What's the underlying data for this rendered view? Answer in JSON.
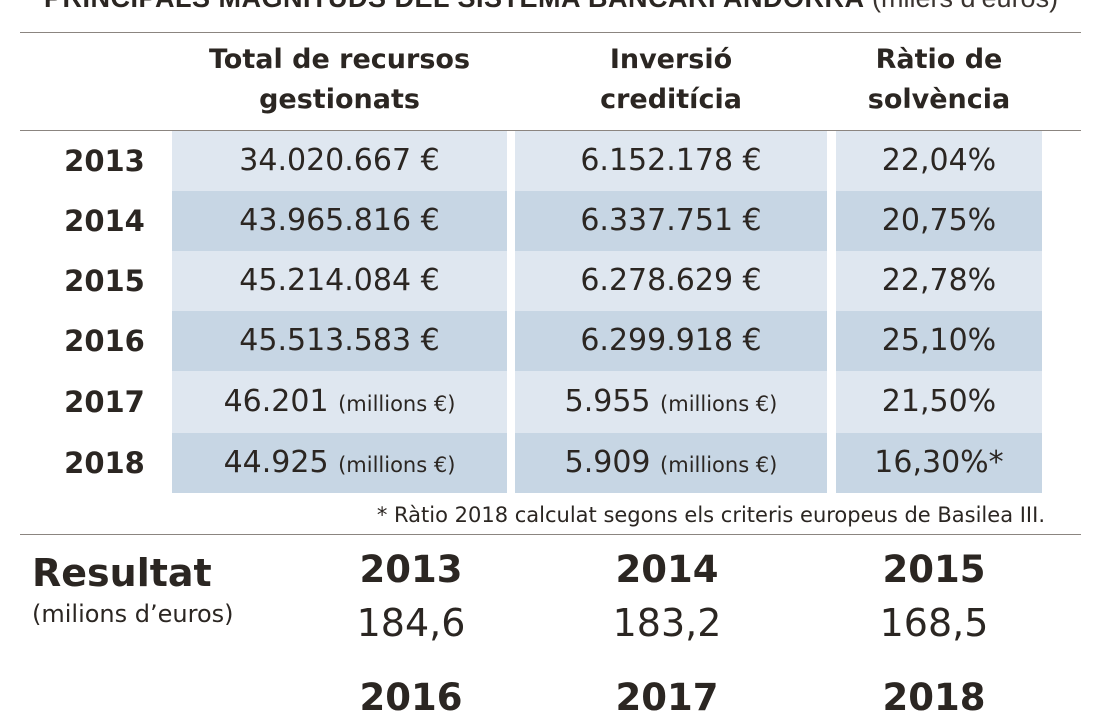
{
  "title": {
    "main": "PRINCIPALS MAGNITUDS DEL SISTEMA BANCARI ANDORRÀ",
    "unit": "(milers d’euros)"
  },
  "chart_data": {
    "type": "table",
    "columns": [
      {
        "line1": "Total de recursos",
        "line2": "gestionats"
      },
      {
        "line1": "Inversió",
        "line2": "creditícia"
      },
      {
        "line1": "Ràtio de",
        "line2": "solvència"
      }
    ],
    "rows": [
      {
        "year": "2013",
        "recursos": "34.020.667 €",
        "recursos_unit": "",
        "inversio": "6.152.178 €",
        "inversio_unit": "",
        "ratio": "22,04%"
      },
      {
        "year": "2014",
        "recursos": "43.965.816 €",
        "recursos_unit": "",
        "inversio": "6.337.751 €",
        "inversio_unit": "",
        "ratio": "20,75%"
      },
      {
        "year": "2015",
        "recursos": "45.214.084 €",
        "recursos_unit": "",
        "inversio": "6.278.629 €",
        "inversio_unit": "",
        "ratio": "22,78%"
      },
      {
        "year": "2016",
        "recursos": "45.513.583 €",
        "recursos_unit": "",
        "inversio": "6.299.918 €",
        "inversio_unit": "",
        "ratio": "25,10%"
      },
      {
        "year": "2017",
        "recursos": "46.201",
        "recursos_unit": "(millions €)",
        "inversio": "5.955",
        "inversio_unit": "(millions €)",
        "ratio": "21,50%"
      },
      {
        "year": "2018",
        "recursos": "44.925",
        "recursos_unit": "(millions €)",
        "inversio": "5.909",
        "inversio_unit": "(millions €)",
        "ratio": "16,30%*"
      }
    ],
    "footnote": "* Ràtio 2018 calculat segons els criteris europeus de Basilea III."
  },
  "result": {
    "label": "Resultat",
    "sublabel": "(milions d’euros)",
    "years": [
      {
        "year": "2013",
        "value": "184,6"
      },
      {
        "year": "2014",
        "value": "183,2"
      },
      {
        "year": "2015",
        "value": "168,5"
      }
    ],
    "years2": [
      "2016",
      "2017",
      "2018"
    ]
  }
}
